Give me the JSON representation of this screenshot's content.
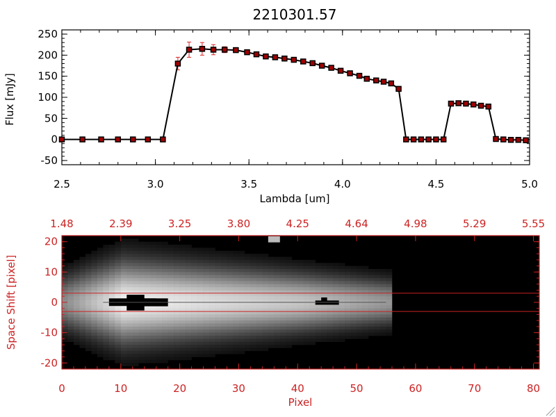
{
  "chart_data": [
    {
      "type": "line",
      "title": "2210301.57",
      "xlabel": "Lambda [um]",
      "ylabel": "Flux [mJy]",
      "xlim": [
        2.5,
        5.0
      ],
      "ylim": [
        -60,
        260
      ],
      "x_tick_labels": [
        "2.5",
        "3.0",
        "3.5",
        "4.0",
        "4.5",
        "5.0"
      ],
      "y_tick_labels": [
        "-50",
        "0",
        "50",
        "100",
        "150",
        "200",
        "250"
      ],
      "colors": {
        "line": "#000000",
        "marker_fill": "#a00000",
        "error_bar": "#dd2222"
      },
      "series": [
        {
          "x": [
            2.5,
            2.61,
            2.71,
            2.8,
            2.88,
            2.96,
            3.04,
            3.12,
            3.18,
            3.25,
            3.31,
            3.37,
            3.43,
            3.49,
            3.54,
            3.59,
            3.64,
            3.69,
            3.74,
            3.79,
            3.84,
            3.89,
            3.94,
            3.99,
            4.04,
            4.09,
            4.13,
            4.18,
            4.22,
            4.26,
            4.3,
            4.34,
            4.38,
            4.42,
            4.46,
            4.5,
            4.54,
            4.58,
            4.62,
            4.66,
            4.7,
            4.74,
            4.78,
            4.82,
            4.86,
            4.9,
            4.94,
            4.98
          ],
          "y": [
            0,
            0,
            0,
            0,
            0,
            0,
            0,
            180,
            213,
            215,
            213,
            213,
            212,
            207,
            202,
            197,
            195,
            192,
            189,
            185,
            181,
            175,
            170,
            163,
            157,
            151,
            144,
            140,
            137,
            133,
            120,
            0,
            0,
            0,
            0,
            0,
            0,
            85,
            86,
            85,
            83,
            80,
            78,
            1,
            0,
            -1,
            -1,
            -2
          ],
          "error": [
            0,
            0,
            0,
            0,
            0,
            0,
            0,
            15,
            18,
            15,
            12,
            7,
            5,
            4,
            4,
            3,
            3,
            3,
            3,
            3,
            3,
            3,
            3,
            3,
            3,
            3,
            3,
            3,
            3,
            3,
            3,
            0,
            0,
            0,
            0,
            0,
            0,
            2,
            2,
            2,
            2,
            2,
            2,
            1,
            1,
            1,
            1,
            1
          ]
        }
      ]
    },
    {
      "type": "heatmap",
      "xlabel": "Pixel",
      "ylabel": "Space Shift [pixel]",
      "xlim": [
        0,
        81
      ],
      "ylim": [
        -22,
        22
      ],
      "x_tick_labels": [
        "0",
        "10",
        "20",
        "30",
        "40",
        "50",
        "60",
        "70",
        "80"
      ],
      "y_tick_labels": [
        "-20",
        "-10",
        "0",
        "10",
        "20"
      ],
      "top_tick_labels": [
        "1.48",
        "2.39",
        "3.25",
        "3.80",
        "4.25",
        "4.64",
        "4.98",
        "5.29",
        "5.55"
      ],
      "horizontal_lines_y": [
        3,
        -3
      ],
      "signal_extent_pixels": [
        0,
        55
      ],
      "colors": {
        "frame": "#cc2222",
        "background": "#000000"
      }
    }
  ]
}
